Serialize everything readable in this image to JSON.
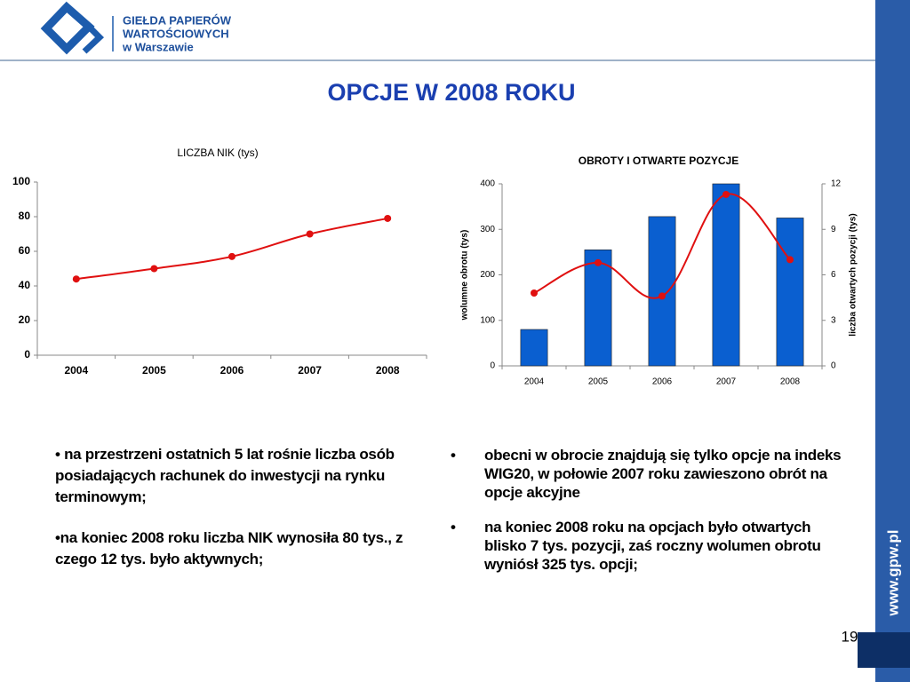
{
  "header": {
    "logo_lines": [
      "GIEŁDA PAPIERÓW",
      "WARTOŚCIOWYCH",
      "w Warszawie"
    ]
  },
  "title": "OPCJE W 2008 ROKU",
  "chart_data": [
    {
      "type": "line",
      "title": "LICZBA  NIK (tys)",
      "categories": [
        "2004",
        "2005",
        "2006",
        "2007",
        "2008"
      ],
      "values": [
        44,
        50,
        57,
        70,
        79
      ],
      "color": "#e01010",
      "ylim": [
        0,
        100
      ],
      "yticks": [
        0,
        20,
        40,
        60,
        80,
        100
      ],
      "grid": false
    },
    {
      "type": "bar",
      "title": "OBROTY I OTWARTE POZYCJE",
      "categories": [
        "2004",
        "2005",
        "2006",
        "2007",
        "2008"
      ],
      "y_label": "wolumne obrotu (tys)",
      "y2_label": "liczba otwartych pozycji  (tys)",
      "series": [
        {
          "type": "bar",
          "color": "#0a5fd0",
          "values": [
            80,
            255,
            328,
            400,
            325
          ]
        },
        {
          "type": "line",
          "axis": "y2",
          "color": "#e01010",
          "values": [
            4.8,
            6.8,
            4.6,
            11.3,
            7
          ]
        }
      ],
      "ylim": [
        0,
        400
      ],
      "yticks": [
        0,
        100,
        200,
        300,
        400
      ],
      "y2lim": [
        0,
        12
      ],
      "y2ticks": [
        0,
        3,
        6,
        9,
        12
      ],
      "grid": false
    }
  ],
  "bullets_left": [
    "na przestrzeni ostatnich 5 lat rośnie liczba osób posiadających rachunek do inwestycji na rynku terminowym;",
    "na koniec  2008 roku liczba NIK wynosiła 80 tys., z czego 12 tys. było aktywnych;"
  ],
  "bullets_right": [
    "obecni w obrocie znajdują się tylko opcje na indeks WIG20, w połowie 2007 roku zawieszono obrót na opcje akcyjne",
    "na koniec 2008 roku na opcjach było otwartych blisko 7 tys. pozycji, zaś roczny wolumen obrotu wyniósł 325 tys. opcji;"
  ],
  "side_text": "www.gpw.pl",
  "page_number": "19"
}
